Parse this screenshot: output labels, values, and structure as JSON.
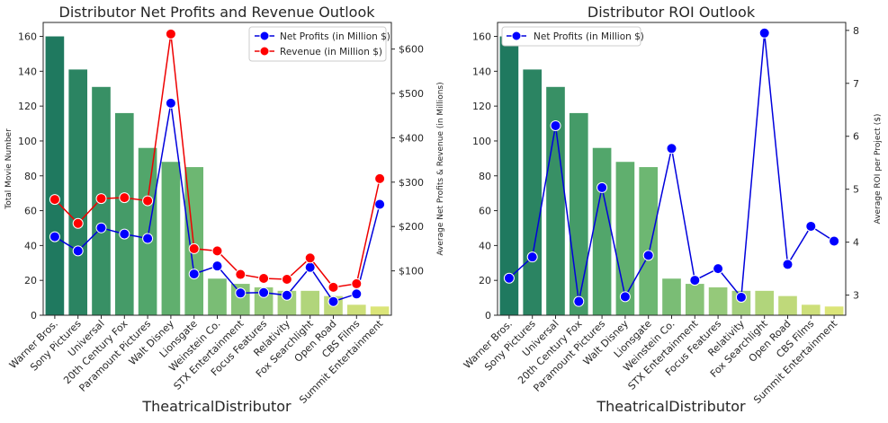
{
  "chart_data": [
    {
      "type": "bar+line",
      "title": "Distributor Net Profits and Revenue Outlook",
      "xlabel": "TheatricalDistributor",
      "ylabel": "Total Movie Number",
      "ylabel_right": "Average Net Profits & Revenue (in Millions)",
      "ylim": [
        0,
        168
      ],
      "ylim_right": [
        0,
        660
      ],
      "y_ticks": [
        "0",
        "20",
        "40",
        "60",
        "80",
        "100",
        "120",
        "140",
        "160"
      ],
      "y_ticks_right": [
        "$100",
        "$200",
        "$300",
        "$400",
        "$500",
        "$600"
      ],
      "categories": [
        "Warner Bros.",
        "Sony Pictures",
        "Universal",
        "20th Century Fox",
        "Paramount Pictures",
        "Walt Disney",
        "Lionsgate",
        "Weinstein Co.",
        "STX Entertainment",
        "Focus Features",
        "Relativity",
        "Fox Searchlight",
        "Open Road",
        "CBS Films",
        "Summit Entertainment"
      ],
      "bars": [
        160,
        141,
        131,
        116,
        96,
        88,
        85,
        21,
        18,
        16,
        14,
        14,
        11,
        6,
        5
      ],
      "bar_colors": [
        "#1f795f",
        "#2b8462",
        "#389065",
        "#459b68",
        "#52a66b",
        "#60af6e",
        "#6db772",
        "#7abd75",
        "#88c378",
        "#95c97a",
        "#a3cf7c",
        "#b1d57b",
        "#bfd97a",
        "#cddf79",
        "#dbe578"
      ],
      "series": [
        {
          "name": "Net Profits (in Million $)",
          "color": "#0000dd",
          "values": [
            177,
            145,
            197,
            183,
            173,
            478,
            93,
            111,
            50,
            51,
            45,
            108,
            31,
            48,
            250
          ]
        },
        {
          "name": "Revenue (in Million $)",
          "color": "#ee0000",
          "values": [
            261,
            207,
            263,
            265,
            258,
            634,
            150,
            145,
            92,
            83,
            81,
            129,
            63,
            71,
            308
          ]
        }
      ],
      "legend_position": "upper-right",
      "grid": false
    },
    {
      "type": "bar+line",
      "title": "Distributor ROI Outlook",
      "xlabel": "TheatricalDistributor",
      "ylabel": "",
      "ylabel_right": "Average ROI per Project ($)",
      "ylim": [
        0,
        168
      ],
      "ylim_right": [
        2.62,
        8.15
      ],
      "y_ticks": [
        "0",
        "20",
        "40",
        "60",
        "80",
        "100",
        "120",
        "140",
        "160"
      ],
      "y_ticks_right": [
        "3",
        "4",
        "5",
        "6",
        "7",
        "8"
      ],
      "categories": [
        "Warner Bros.",
        "Sony Pictures",
        "Universal",
        "20th Century Fox",
        "Paramount Pictures",
        "Walt Disney",
        "Lionsgate",
        "Weinstein Co.",
        "STX Entertainment",
        "Focus Features",
        "Relativity",
        "Fox Searchlight",
        "Open Road",
        "CBS Films",
        "Summit Entertainment"
      ],
      "bars": [
        160,
        141,
        131,
        116,
        96,
        88,
        85,
        21,
        18,
        16,
        14,
        14,
        11,
        6,
        5
      ],
      "bar_colors": [
        "#1f795f",
        "#2b8462",
        "#389065",
        "#459b68",
        "#52a66b",
        "#60af6e",
        "#6db772",
        "#7abd75",
        "#88c378",
        "#95c97a",
        "#a3cf7c",
        "#b1d57b",
        "#bfd97a",
        "#cddf79",
        "#dbe578"
      ],
      "series": [
        {
          "name": "Net Profits (in Million $)",
          "color": "#0000dd",
          "values": [
            3.32,
            3.72,
            6.2,
            2.88,
            5.03,
            2.97,
            3.75,
            5.77,
            3.28,
            3.5,
            2.96,
            7.95,
            3.58,
            4.3,
            4.02
          ]
        }
      ],
      "legend_position": "upper-left",
      "grid": false
    }
  ]
}
